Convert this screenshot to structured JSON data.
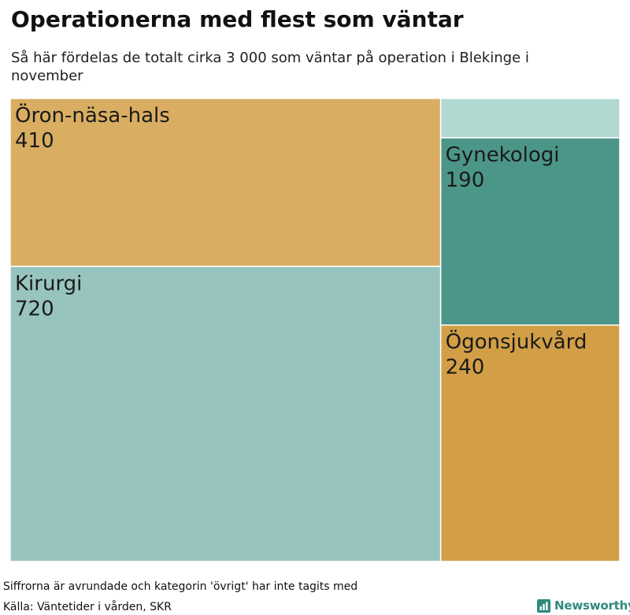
{
  "title": "Operationerna med flest som väntar",
  "subtitle": "Så här fördelas de totalt cirka 3 000 som väntar på operation i Blekinge i november",
  "footer": {
    "note": "Siffrorna är avrundade och kategorin 'övrigt' har inte tagits med",
    "source": "Källa: Väntetider i vården, SKR",
    "brand": "Newsworthy"
  },
  "colors": {
    "tile_border": "#ffffff",
    "brand": "#2f8a7d"
  },
  "chart_data": {
    "type": "treemap",
    "unit": "patients waiting",
    "items": [
      {
        "label": "Öron-näsa-hals",
        "value": 410,
        "color": "#d9ae62"
      },
      {
        "label": "Kirurgi",
        "value": 720,
        "color": "#97c4be"
      },
      {
        "label": "",
        "value": 40,
        "color": "#b2d8d2"
      },
      {
        "label": "Gynekologi",
        "value": 190,
        "color": "#4b9689"
      },
      {
        "label": "Ögonsjukvård",
        "value": 240,
        "color": "#d29f47"
      }
    ]
  }
}
